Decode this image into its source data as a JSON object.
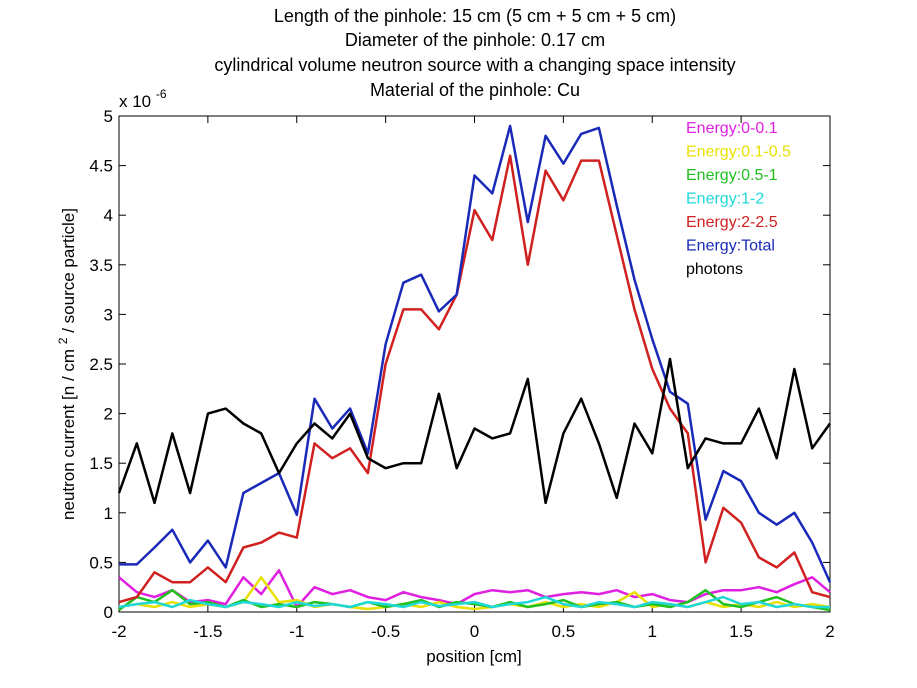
{
  "chart_data": {
    "type": "line",
    "title_lines": [
      "Length of the pinhole: 15 cm (5 cm + 5 cm + 5 cm)",
      "Diameter of the pinhole: 0.17 cm",
      "cylindrical volume neutron source with a changing space intensity",
      "Material of the pinhole:  Cu"
    ],
    "xlabel": "position [cm]",
    "ylabel_main": "neutron current [n / cm",
    "ylabel_sup": "2",
    "ylabel_tail": " / source particle]",
    "y_exponent_base": "x 10",
    "y_exponent_power": "-6",
    "xlim": [
      -2,
      2
    ],
    "ylim": [
      0,
      5
    ],
    "x_ticks": [
      -2,
      -1.5,
      -1,
      -0.5,
      0,
      0.5,
      1,
      1.5,
      2
    ],
    "x_tick_labels": [
      "-2",
      "-1.5",
      "-1",
      "-0.5",
      "0",
      "0.5",
      "1",
      "1.5",
      "2"
    ],
    "y_ticks": [
      0,
      0.5,
      1,
      1.5,
      2,
      2.5,
      3,
      3.5,
      4,
      4.5,
      5
    ],
    "y_tick_labels": [
      "0",
      "0.5",
      "1",
      "1.5",
      "2",
      "2.5",
      "3",
      "3.5",
      "4",
      "4.5",
      "5"
    ],
    "grid": false,
    "legend_position": "top-right",
    "x": [
      -2.0,
      -1.9,
      -1.8,
      -1.7,
      -1.6,
      -1.5,
      -1.4,
      -1.3,
      -1.2,
      -1.1,
      -1.0,
      -0.9,
      -0.8,
      -0.7,
      -0.6,
      -0.5,
      -0.4,
      -0.3,
      -0.2,
      -0.1,
      0.0,
      0.1,
      0.2,
      0.3,
      0.4,
      0.5,
      0.6,
      0.7,
      0.8,
      0.9,
      1.0,
      1.1,
      1.2,
      1.3,
      1.4,
      1.5,
      1.6,
      1.7,
      1.8,
      1.9,
      2.0
    ],
    "series": [
      {
        "name": "Energy:0-0.1",
        "color": "#e020e0",
        "values": [
          0.35,
          0.2,
          0.15,
          0.22,
          0.1,
          0.12,
          0.08,
          0.35,
          0.18,
          0.42,
          0.05,
          0.25,
          0.18,
          0.22,
          0.15,
          0.12,
          0.2,
          0.15,
          0.12,
          0.08,
          0.18,
          0.22,
          0.2,
          0.22,
          0.15,
          0.18,
          0.2,
          0.18,
          0.22,
          0.15,
          0.18,
          0.12,
          0.1,
          0.18,
          0.22,
          0.22,
          0.25,
          0.2,
          0.28,
          0.35,
          0.2
        ]
      },
      {
        "name": "Energy:0.1-0.5",
        "color": "#e8e000",
        "values": [
          0.05,
          0.08,
          0.05,
          0.1,
          0.05,
          0.08,
          0.05,
          0.1,
          0.35,
          0.1,
          0.12,
          0.05,
          0.08,
          0.05,
          0.03,
          0.05,
          0.08,
          0.05,
          0.1,
          0.05,
          0.03,
          0.05,
          0.08,
          0.05,
          0.1,
          0.05,
          0.08,
          0.05,
          0.1,
          0.2,
          0.05,
          0.08,
          0.05,
          0.1,
          0.05,
          0.08,
          0.05,
          0.1,
          0.05,
          0.08,
          0.05
        ]
      },
      {
        "name": "Energy:0.5-1",
        "color": "#20c020",
        "values": [
          0.02,
          0.15,
          0.1,
          0.22,
          0.08,
          0.1,
          0.05,
          0.12,
          0.05,
          0.08,
          0.05,
          0.1,
          0.08,
          0.05,
          0.1,
          0.05,
          0.08,
          0.12,
          0.05,
          0.1,
          0.08,
          0.05,
          0.1,
          0.05,
          0.08,
          0.12,
          0.05,
          0.08,
          0.1,
          0.05,
          0.08,
          0.05,
          0.1,
          0.22,
          0.08,
          0.05,
          0.1,
          0.15,
          0.08,
          0.05,
          0.02
        ]
      },
      {
        "name": "Energy:1-2",
        "color": "#20d8d8",
        "values": [
          0.05,
          0.08,
          0.1,
          0.05,
          0.12,
          0.08,
          0.05,
          0.1,
          0.08,
          0.05,
          0.1,
          0.06,
          0.08,
          0.05,
          0.1,
          0.08,
          0.05,
          0.1,
          0.06,
          0.08,
          0.1,
          0.05,
          0.08,
          0.1,
          0.15,
          0.08,
          0.05,
          0.1,
          0.08,
          0.05,
          0.1,
          0.08,
          0.05,
          0.1,
          0.15,
          0.08,
          0.1,
          0.05,
          0.08,
          0.05,
          0.05
        ]
      },
      {
        "name": "Energy:2-2.5",
        "color": "#d02020",
        "values": [
          0.1,
          0.15,
          0.4,
          0.3,
          0.3,
          0.45,
          0.3,
          0.65,
          0.7,
          0.8,
          0.75,
          1.7,
          1.55,
          1.65,
          1.4,
          2.5,
          3.05,
          3.05,
          2.85,
          3.2,
          4.05,
          3.75,
          4.6,
          3.5,
          4.45,
          4.15,
          4.55,
          4.55,
          3.8,
          3.05,
          2.45,
          2.05,
          1.8,
          0.5,
          1.05,
          0.9,
          0.55,
          0.45,
          0.6,
          0.2,
          0.15
        ]
      },
      {
        "name": "Energy:Total",
        "color": "#1a2ab8",
        "values": [
          0.48,
          0.48,
          0.65,
          0.83,
          0.5,
          0.72,
          0.45,
          1.2,
          1.3,
          1.4,
          0.98,
          2.15,
          1.85,
          2.05,
          1.6,
          2.7,
          3.32,
          3.4,
          3.03,
          3.2,
          4.4,
          4.22,
          4.9,
          3.93,
          4.8,
          4.52,
          4.82,
          4.88,
          4.1,
          3.35,
          2.75,
          2.22,
          2.1,
          0.93,
          1.42,
          1.32,
          1.0,
          0.88,
          1.0,
          0.7,
          0.3
        ]
      },
      {
        "name": "photons",
        "color": "#000000",
        "values": [
          1.2,
          1.7,
          1.1,
          1.8,
          1.2,
          2.0,
          2.05,
          1.9,
          1.8,
          1.4,
          1.7,
          1.9,
          1.75,
          2.0,
          1.55,
          1.45,
          1.5,
          1.5,
          2.2,
          1.45,
          1.85,
          1.75,
          1.8,
          2.35,
          1.1,
          1.8,
          2.15,
          1.7,
          1.15,
          1.9,
          1.6,
          2.55,
          1.45,
          1.75,
          1.7,
          1.7,
          2.05,
          1.55,
          2.45,
          1.65,
          1.9
        ]
      }
    ]
  }
}
